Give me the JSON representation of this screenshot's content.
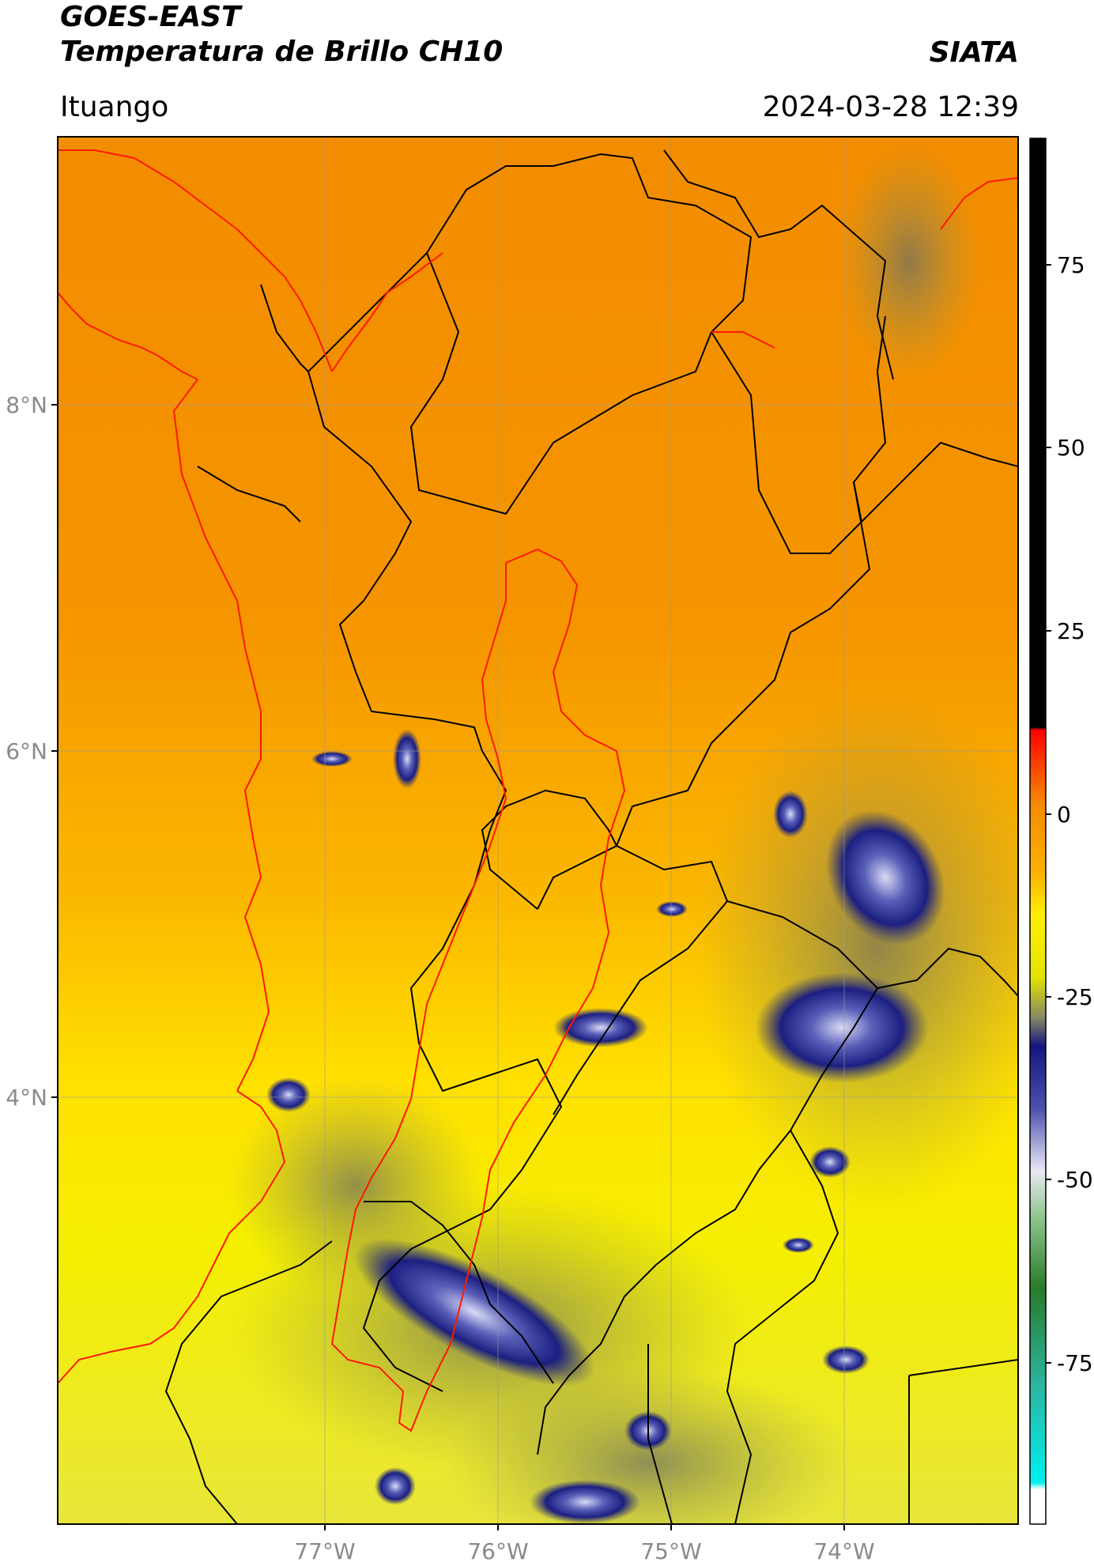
{
  "header": {
    "satellite": "GOES-EAST",
    "product": "Temperatura de Brillo CH10",
    "agency": "SIATA",
    "region": "Ituango",
    "datetime": "2024-03-28 12:39"
  },
  "map": {
    "lat_labels": [
      "8°N",
      "6°N",
      "4°N"
    ],
    "lon_labels": [
      "77°W",
      "76°W",
      "75°W",
      "74°W"
    ],
    "colors": {
      "warm": "#f59300",
      "mid": "#fbc500",
      "cool": "#f6ee00",
      "cloud": "#1b1a7e",
      "cloud_top": "#c7c9ee",
      "boundary": "#000000",
      "coast": "#ff0000"
    }
  },
  "colorbar": {
    "ticks": [
      "75",
      "50",
      "25",
      "0",
      "-25",
      "-50",
      "-75"
    ]
  }
}
